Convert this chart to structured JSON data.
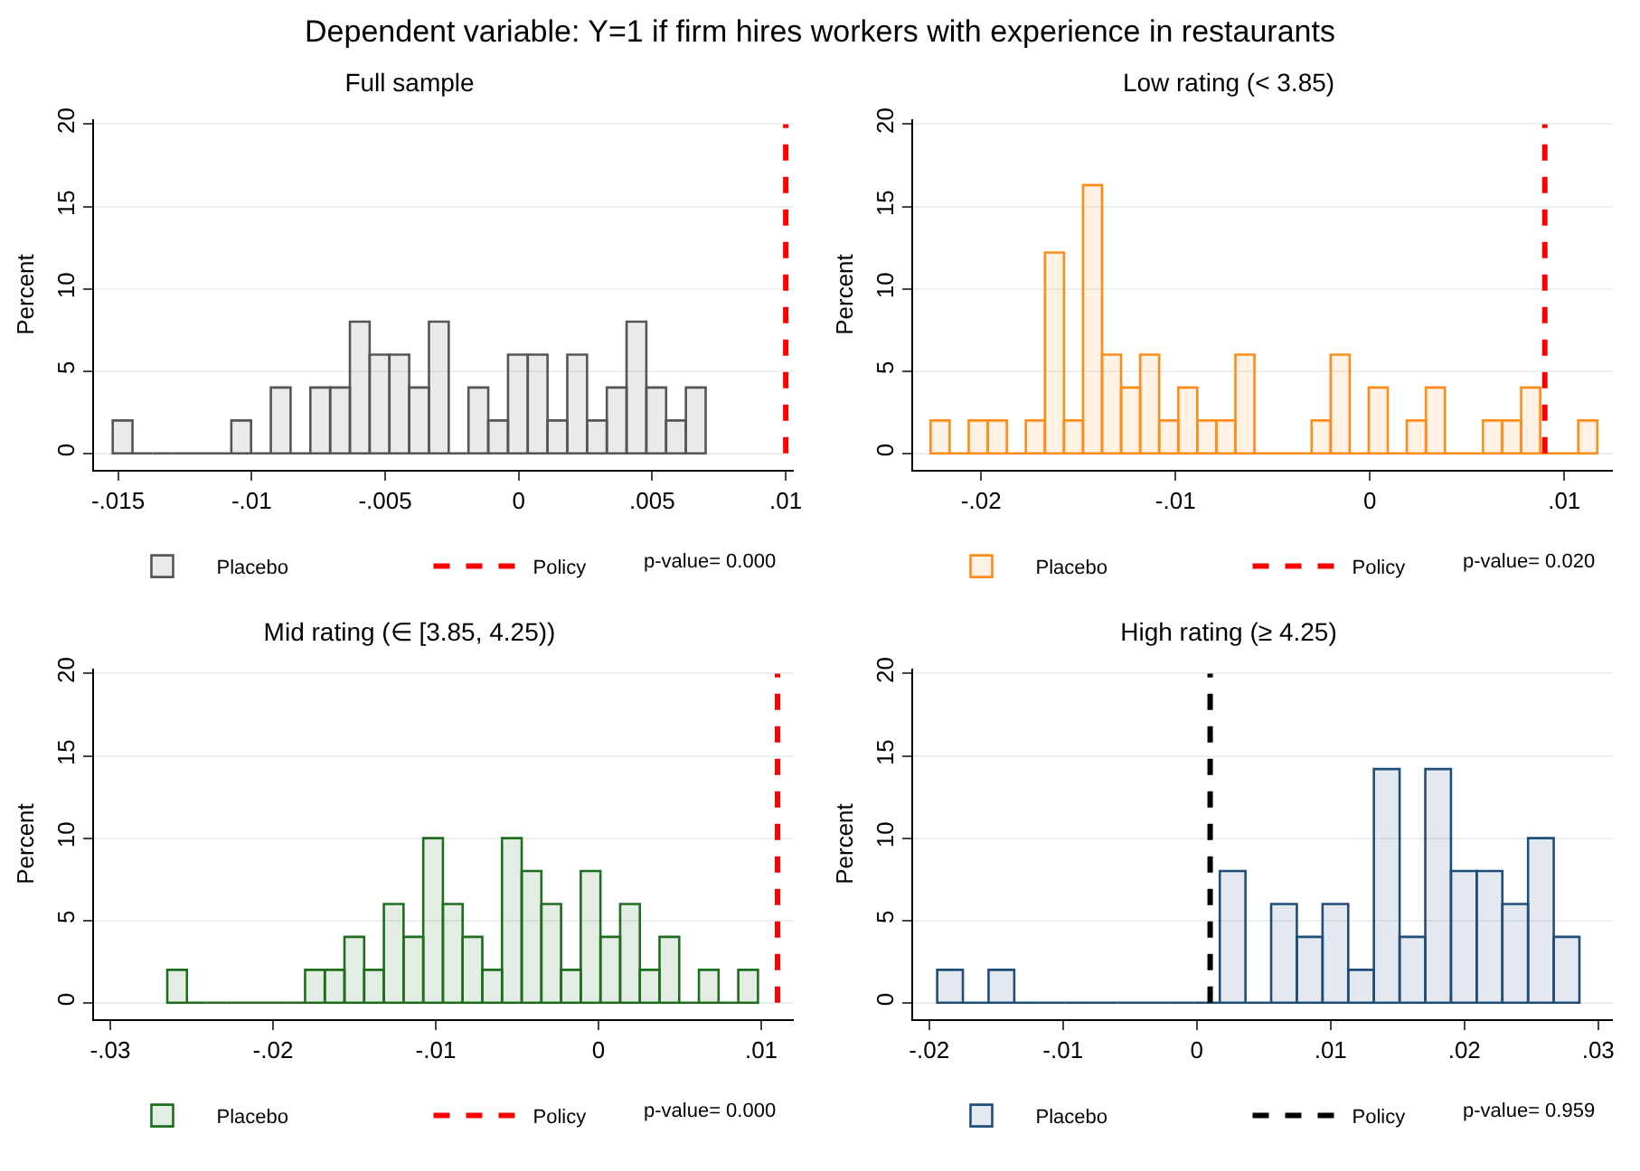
{
  "chart_data": [
    {
      "type": "other",
      "title": "Dependent variable: Y=1 if firm hires workers with experience in restaurants"
    },
    {
      "type": "histogram",
      "title": "Full sample",
      "ylabel": "Percent",
      "bins": [
        -0.0152,
        -0.01446,
        -0.01372,
        -0.01298,
        -0.01224,
        -0.0115,
        -0.01076,
        -0.01002,
        -0.00928,
        -0.00854,
        -0.0078,
        -0.00706,
        -0.00632,
        -0.00558,
        -0.00484,
        -0.0041,
        -0.00336,
        -0.00262,
        -0.00188,
        -0.00114,
        -0.0004,
        0.00034,
        0.00108,
        0.00182,
        0.00256,
        0.0033,
        0.00404,
        0.00478,
        0.00552,
        0.00626,
        0.007
      ],
      "series": [
        {
          "name": "Placebo",
          "color": "#555555",
          "values": [
            2,
            0,
            0,
            0,
            0,
            0,
            2,
            0,
            4,
            0,
            4,
            4,
            8,
            6,
            6,
            4,
            8,
            0,
            4,
            2,
            6,
            6,
            2,
            6,
            2,
            4,
            8,
            4,
            2,
            4
          ]
        }
      ],
      "ref_lines": [
        {
          "axis": "x",
          "value": 0.01,
          "label": "Policy",
          "color": "#ff0000",
          "line_style": "dashed"
        }
      ],
      "annotations": [
        "p-value= 0.000"
      ],
      "xlim": [
        -0.0159,
        0.0103
      ],
      "ylim": [
        -1,
        20.3
      ],
      "xticks": [
        {
          "value": -0.015,
          "label": "-.015"
        },
        {
          "value": -0.01,
          "label": "-.01"
        },
        {
          "value": -0.005,
          "label": "-.005"
        },
        {
          "value": 0,
          "label": "0"
        },
        {
          "value": 0.005,
          "label": ".005"
        },
        {
          "value": 0.01,
          "label": ".01"
        }
      ],
      "yticks": [
        0,
        5,
        10,
        15,
        20
      ],
      "grid": "y",
      "legend": "bottom"
    },
    {
      "type": "histogram",
      "title": "Low rating (< 3.85)",
      "ylabel": "Percent",
      "bins": [
        -0.0226,
        -0.02162,
        -0.02064,
        -0.01966,
        -0.01868,
        -0.0177,
        -0.01672,
        -0.01574,
        -0.01476,
        -0.01378,
        -0.0128,
        -0.01182,
        -0.01084,
        -0.00986,
        -0.00888,
        -0.0079,
        -0.00692,
        -0.00594,
        -0.00496,
        -0.00398,
        -0.003,
        -0.00202,
        -0.00104,
        -6e-05,
        0.00092,
        0.0019,
        0.00288,
        0.00386,
        0.00484,
        0.00582,
        0.0068,
        0.00778,
        0.00876,
        0.00974,
        0.01072,
        0.0117
      ],
      "series": [
        {
          "name": "Placebo",
          "color": "#ff8c1a",
          "values": [
            2,
            0,
            2,
            2,
            0,
            2,
            12.2,
            2,
            16.3,
            6,
            4,
            6,
            2,
            4,
            2,
            2,
            6,
            0,
            0,
            0,
            2,
            6,
            0,
            4,
            0,
            2,
            4,
            0,
            0,
            2,
            2,
            4,
            0,
            0,
            2
          ]
        }
      ],
      "ref_lines": [
        {
          "axis": "x",
          "value": 0.009,
          "label": "Policy",
          "color": "#ff0000",
          "line_style": "dashed"
        }
      ],
      "annotations": [
        "p-value= 0.020"
      ],
      "xlim": [
        -0.0235,
        0.0125
      ],
      "ylim": [
        -1,
        20.3
      ],
      "xticks": [
        {
          "value": -0.02,
          "label": "-.02"
        },
        {
          "value": -0.01,
          "label": "-.01"
        },
        {
          "value": 0,
          "label": "0"
        },
        {
          "value": 0.01,
          "label": ".01"
        }
      ],
      "yticks": [
        0,
        5,
        10,
        15,
        20
      ],
      "grid": "y",
      "legend": "bottom"
    },
    {
      "type": "histogram",
      "title": "Mid rating (∈ [3.85, 4.25))",
      "ylabel": "Percent",
      "bins": [
        -0.0265,
        -0.02529,
        -0.02408,
        -0.02287,
        -0.02166,
        -0.02045,
        -0.01924,
        -0.01803,
        -0.01682,
        -0.01561,
        -0.0144,
        -0.01319,
        -0.01198,
        -0.01077,
        -0.00956,
        -0.00835,
        -0.00714,
        -0.00593,
        -0.00472,
        -0.00351,
        -0.0023,
        -0.00109,
        0.00012,
        0.00133,
        0.00254,
        0.00375,
        0.00496,
        0.00617,
        0.00738,
        0.00859,
        0.0098
      ],
      "series": [
        {
          "name": "Placebo",
          "color": "#1e6e1e",
          "values": [
            2,
            0,
            0,
            0,
            0,
            0,
            0,
            2,
            2,
            4,
            2,
            6,
            4,
            10,
            6,
            4,
            2,
            10,
            8,
            6,
            2,
            8,
            4,
            6,
            2,
            4,
            0,
            2,
            0,
            2
          ]
        }
      ],
      "ref_lines": [
        {
          "axis": "x",
          "value": 0.011,
          "label": "Policy",
          "color": "#ff0000",
          "line_style": "dashed"
        }
      ],
      "annotations": [
        "p-value= 0.000"
      ],
      "xlim": [
        -0.031,
        0.012
      ],
      "ylim": [
        -1,
        20.3
      ],
      "xticks": [
        {
          "value": -0.03,
          "label": "-.03"
        },
        {
          "value": -0.02,
          "label": "-.02"
        },
        {
          "value": -0.01,
          "label": "-.01"
        },
        {
          "value": 0,
          "label": "0"
        },
        {
          "value": 0.01,
          "label": ".01"
        }
      ],
      "yticks": [
        0,
        5,
        10,
        15,
        20
      ],
      "grid": "y",
      "legend": "bottom"
    },
    {
      "type": "histogram",
      "title": "High rating (≥ 4.25)",
      "ylabel": "Percent",
      "bins": [
        -0.0194,
        -0.01748,
        -0.01556,
        -0.01364,
        -0.01172,
        -0.0098,
        -0.00788,
        -0.00596,
        -0.00404,
        -0.00212,
        -0.0002,
        0.00172,
        0.00364,
        0.00556,
        0.00748,
        0.0094,
        0.01132,
        0.01324,
        0.01516,
        0.01708,
        0.019,
        0.02092,
        0.02284,
        0.02476,
        0.02668,
        0.0286
      ],
      "series": [
        {
          "name": "Placebo",
          "color": "#1f4e79",
          "values": [
            2,
            0,
            2,
            0,
            0,
            0,
            0,
            0,
            0,
            0,
            0,
            8,
            0,
            6,
            4,
            6,
            2,
            14.2,
            4,
            14.2,
            8,
            8,
            6,
            10,
            4
          ]
        }
      ],
      "ref_lines": [
        {
          "axis": "x",
          "value": 0.001,
          "label": "Policy",
          "color": "#000000",
          "line_style": "dashed"
        }
      ],
      "annotations": [
        "p-value= 0.959"
      ],
      "xlim": [
        -0.0212,
        0.0311
      ],
      "ylim": [
        -1,
        20.3
      ],
      "xticks": [
        {
          "value": -0.02,
          "label": "-.02"
        },
        {
          "value": -0.01,
          "label": "-.01"
        },
        {
          "value": 0,
          "label": "0"
        },
        {
          "value": 0.01,
          "label": ".01"
        },
        {
          "value": 0.02,
          "label": ".02"
        },
        {
          "value": 0.03,
          "label": ".03"
        }
      ],
      "yticks": [
        0,
        5,
        10,
        15,
        20
      ],
      "grid": "y",
      "legend": "bottom"
    }
  ]
}
